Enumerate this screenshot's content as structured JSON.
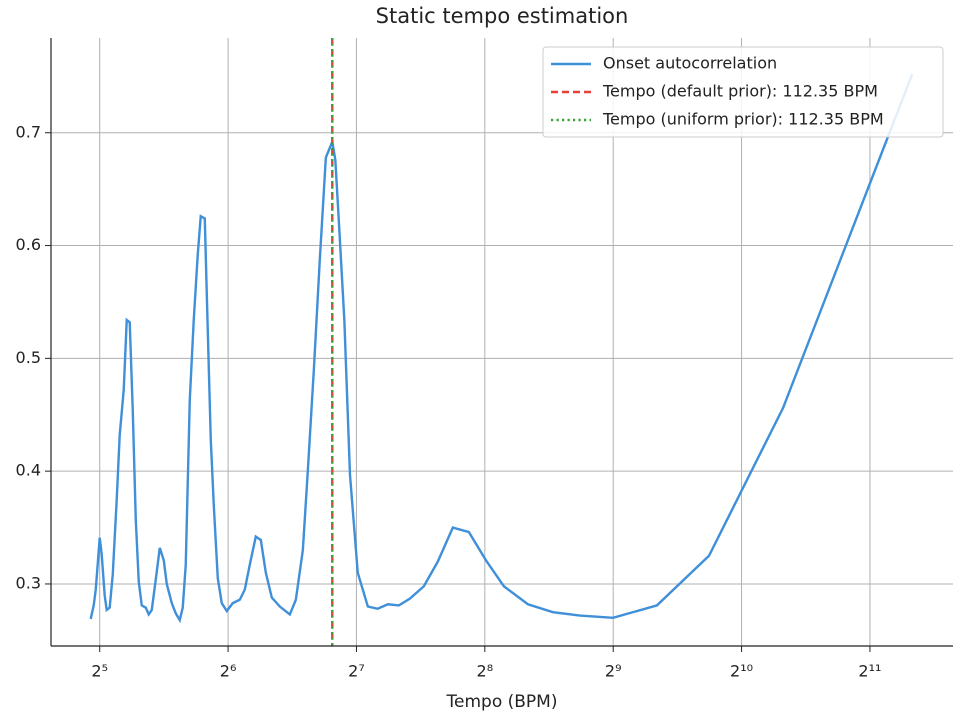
{
  "chart_data": {
    "type": "line",
    "title": "Static tempo estimation",
    "x_label": "Tempo (BPM)",
    "x": [
      30.48,
      30.98,
      31.32,
      31.65,
      32,
      32.35,
      32.87,
      33.23,
      33.77,
      34.33,
      35.08,
      35.65,
      36.43,
      37.03,
      37.63,
      38.25,
      38.88,
      39.51,
      40.16,
      41.03,
      41.7,
      42.39,
      43.31,
      44.26,
      45.22,
      45.96,
      47.22,
      48.25,
      49.3,
      50.1,
      50.92,
      52.04,
      53.17,
      54.33,
      55.22,
      56.43,
      57.35,
      58.29,
      59.24,
      60.54,
      61.86,
      63.56,
      65.65,
      68.17,
      70.04,
      71.96,
      74.33,
      76.37,
      78.46,
      81.04,
      84.62,
      89.33,
      92.27,
      95.83,
      98.46,
      101.7,
      105.0,
      108.5,
      112.35,
      114.2,
      116.7,
      119.9,
      123.6,
      128.9,
      136.1,
      143.6,
      151.6,
      160.9,
      170.8,
      184.2,
      198.7,
      215.4,
      234.9,
      257.5,
      283.7,
      323.0,
      369.8,
      427.8,
      511.6,
      648.4,
      858.8,
      1281,
      2573
    ],
    "series": [
      {
        "name": "Onset autocorrelation",
        "color": "#3f8fd9",
        "values": [
          0.269,
          0.281,
          0.295,
          0.317,
          0.341,
          0.326,
          0.29,
          0.277,
          0.279,
          0.308,
          0.375,
          0.432,
          0.472,
          0.534,
          0.532,
          0.454,
          0.357,
          0.302,
          0.281,
          0.279,
          0.273,
          0.277,
          0.304,
          0.332,
          0.321,
          0.3,
          0.283,
          0.274,
          0.268,
          0.279,
          0.317,
          0.463,
          0.534,
          0.592,
          0.626,
          0.624,
          0.525,
          0.428,
          0.37,
          0.305,
          0.283,
          0.276,
          0.283,
          0.286,
          0.295,
          0.317,
          0.342,
          0.339,
          0.31,
          0.288,
          0.28,
          0.273,
          0.286,
          0.33,
          0.401,
          0.49,
          0.587,
          0.678,
          0.692,
          0.676,
          0.614,
          0.534,
          0.397,
          0.31,
          0.28,
          0.278,
          0.282,
          0.281,
          0.287,
          0.298,
          0.32,
          0.35,
          0.346,
          0.321,
          0.298,
          0.282,
          0.275,
          0.272,
          0.27,
          0.281,
          0.325,
          0.456,
          0.752
        ]
      }
    ],
    "vlines": [
      {
        "name": "Tempo (default prior): 112.35 BPM",
        "x": 112.35,
        "color": "#e8403a",
        "style": "dashed"
      },
      {
        "name": "Tempo (uniform prior): 112.35 BPM",
        "x": 112.35,
        "color": "#35a335",
        "style": "dotted"
      }
    ],
    "xscale": "log2",
    "xlim": [
      24.6,
      3207
    ],
    "xticks": [
      {
        "value": 32,
        "label": "2⁵"
      },
      {
        "value": 64,
        "label": "2⁶"
      },
      {
        "value": 128,
        "label": "2⁷"
      },
      {
        "value": 256,
        "label": "2⁸"
      },
      {
        "value": 512,
        "label": "2⁹"
      },
      {
        "value": 1024,
        "label": "2¹⁰"
      },
      {
        "value": 2048,
        "label": "2¹¹"
      }
    ],
    "ylim": [
      0.245,
      0.784
    ],
    "yticks": [
      0.3,
      0.4,
      0.5,
      0.6,
      0.7
    ],
    "grid": true,
    "legend": "upper right"
  }
}
